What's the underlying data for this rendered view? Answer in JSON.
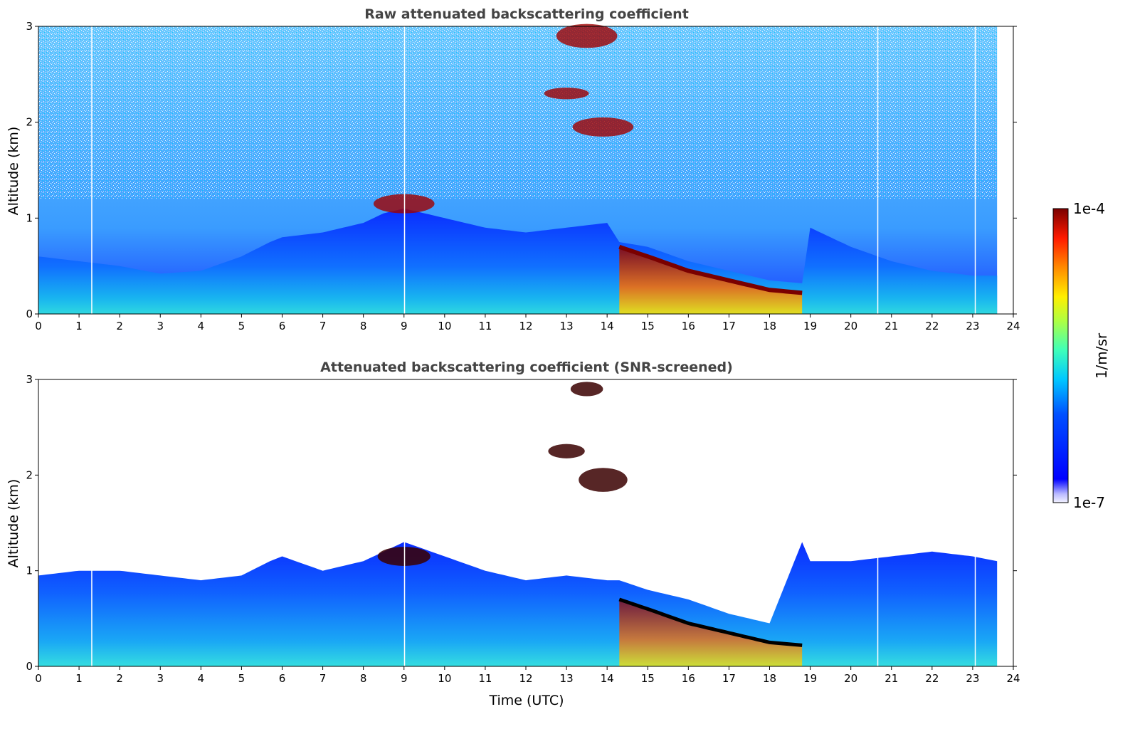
{
  "chart_data": [
    {
      "type": "heatmap",
      "title": "Raw attenuated backscattering coefficient",
      "xlabel": "",
      "ylabel": "Altitude (km)",
      "xlim": [
        0,
        24
      ],
      "ylim": [
        0,
        3
      ],
      "x_ticks": [
        "0",
        "1",
        "2",
        "3",
        "4",
        "5",
        "6",
        "7",
        "8",
        "9",
        "10",
        "11",
        "12",
        "13",
        "14",
        "15",
        "16",
        "17",
        "18",
        "19",
        "20",
        "21",
        "22",
        "23",
        "24"
      ],
      "y_ticks": [
        "0",
        "1",
        "2",
        "3"
      ],
      "data_end_time": 23.6,
      "screened": false,
      "layers": [
        {
          "name": "boundary-layer-top",
          "x": [
            0,
            1,
            2,
            3,
            4,
            5,
            5.7,
            6,
            7,
            8,
            8.5,
            9,
            10,
            11,
            12,
            13,
            14,
            14.3,
            15,
            16,
            17,
            18,
            18.8,
            19,
            20,
            21,
            22,
            23,
            23.6
          ],
          "y": [
            0.6,
            0.55,
            0.5,
            0.42,
            0.45,
            0.6,
            0.75,
            0.8,
            0.85,
            0.95,
            1.05,
            1.1,
            1.0,
            0.9,
            0.85,
            0.9,
            0.95,
            0.75,
            0.7,
            0.55,
            0.45,
            0.35,
            0.32,
            0.9,
            0.7,
            0.55,
            0.45,
            0.4,
            0.4
          ]
        },
        {
          "name": "cloud-base",
          "x": [
            14.3,
            15,
            16,
            17,
            18,
            18.8
          ],
          "y": [
            0.7,
            0.6,
            0.45,
            0.35,
            0.25,
            0.22
          ]
        }
      ]
    },
    {
      "type": "heatmap",
      "title": "Attenuated backscattering coefficient (SNR-screened)",
      "xlabel": "Time (UTC)",
      "ylabel": "Altitude (km)",
      "xlim": [
        0,
        24
      ],
      "ylim": [
        0,
        3
      ],
      "x_ticks": [
        "0",
        "1",
        "2",
        "3",
        "4",
        "5",
        "6",
        "7",
        "8",
        "9",
        "10",
        "11",
        "12",
        "13",
        "14",
        "15",
        "16",
        "17",
        "18",
        "19",
        "20",
        "21",
        "22",
        "23",
        "24"
      ],
      "y_ticks": [
        "0",
        "1",
        "2",
        "3"
      ],
      "data_end_time": 23.6,
      "screened": true,
      "screen_top": {
        "x": [
          0,
          1,
          2,
          3,
          4,
          5,
          5.7,
          6,
          7,
          8,
          8.5,
          9,
          10,
          11,
          12,
          13,
          14,
          14.3,
          15,
          16,
          17,
          18,
          18.8,
          19,
          20,
          21,
          22,
          23,
          23.6
        ],
        "y": [
          0.95,
          1.0,
          1.0,
          0.95,
          0.9,
          0.95,
          1.1,
          1.15,
          1.0,
          1.1,
          1.2,
          1.3,
          1.15,
          1.0,
          0.9,
          0.95,
          0.9,
          0.9,
          0.8,
          0.7,
          0.55,
          0.45,
          1.3,
          1.1,
          1.1,
          1.15,
          1.2,
          1.15,
          1.1
        ]
      }
    }
  ],
  "colorbar": {
    "label": "1/m/sr",
    "max_label": "1e-4",
    "min_label": "1e-7",
    "colormap": [
      "#0000ff",
      "#00a0ff",
      "#00d8ff",
      "#40ffb0",
      "#c8ff30",
      "#ffe000",
      "#ff8000",
      "#ff2000",
      "#c00000",
      "#800000"
    ]
  }
}
